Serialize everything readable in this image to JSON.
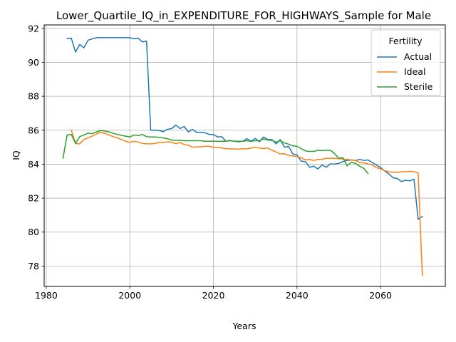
{
  "chart_data": {
    "type": "line",
    "title": "Lower_Quartile_IQ_in_EXPENDITURE_FOR_HIGHWAYS_Sample for Male",
    "xlabel": "Years",
    "ylabel": "IQ",
    "xlim": [
      1979.5,
      2075.5
    ],
    "ylim": [
      76.8,
      92.2
    ],
    "xticks": [
      1980,
      2000,
      2020,
      2040,
      2060
    ],
    "yticks": [
      78,
      80,
      82,
      84,
      86,
      88,
      90,
      92
    ],
    "grid": true,
    "legend": {
      "title": "Fertility",
      "position": "top-right"
    },
    "series": [
      {
        "name": "Actual",
        "color": "#1f77b4",
        "points": [
          [
            1985,
            91.4
          ],
          [
            1986,
            91.42
          ],
          [
            1987,
            90.6
          ],
          [
            1988,
            91.05
          ],
          [
            1989,
            90.85
          ],
          [
            1990,
            91.3
          ],
          [
            1991,
            91.38
          ],
          [
            1992,
            91.45
          ],
          [
            1993,
            91.45
          ],
          [
            1994,
            91.45
          ],
          [
            1995,
            91.45
          ],
          [
            1996,
            91.45
          ],
          [
            1997,
            91.45
          ],
          [
            1998,
            91.45
          ],
          [
            1999,
            91.45
          ],
          [
            2000,
            91.45
          ],
          [
            2001,
            91.38
          ],
          [
            2002,
            91.42
          ],
          [
            2003,
            91.2
          ],
          [
            2004,
            91.25
          ],
          [
            2005,
            86.0
          ],
          [
            2006,
            86.0
          ],
          [
            2007,
            85.98
          ],
          [
            2008,
            85.92
          ],
          [
            2009,
            86.05
          ],
          [
            2010,
            86.1
          ],
          [
            2011,
            86.3
          ],
          [
            2012,
            86.1
          ],
          [
            2013,
            86.22
          ],
          [
            2014,
            85.9
          ],
          [
            2015,
            86.05
          ],
          [
            2016,
            85.88
          ],
          [
            2017,
            85.88
          ],
          [
            2018,
            85.85
          ],
          [
            2019,
            85.75
          ],
          [
            2020,
            85.75
          ],
          [
            2021,
            85.6
          ],
          [
            2022,
            85.62
          ],
          [
            2023,
            85.35
          ],
          [
            2024,
            85.4
          ],
          [
            2025,
            85.35
          ],
          [
            2026,
            85.32
          ],
          [
            2027,
            85.35
          ],
          [
            2028,
            85.5
          ],
          [
            2029,
            85.35
          ],
          [
            2030,
            85.52
          ],
          [
            2031,
            85.32
          ],
          [
            2032,
            85.6
          ],
          [
            2033,
            85.45
          ],
          [
            2034,
            85.45
          ],
          [
            2035,
            85.2
          ],
          [
            2036,
            85.45
          ],
          [
            2037,
            85.0
          ],
          [
            2038,
            85.05
          ],
          [
            2039,
            84.6
          ],
          [
            2040,
            84.55
          ],
          [
            2041,
            84.18
          ],
          [
            2042,
            84.15
          ],
          [
            2043,
            83.82
          ],
          [
            2044,
            83.88
          ],
          [
            2045,
            83.72
          ],
          [
            2046,
            83.95
          ],
          [
            2047,
            83.82
          ],
          [
            2048,
            84.02
          ],
          [
            2049,
            84.0
          ],
          [
            2050,
            84.05
          ],
          [
            2051,
            84.15
          ],
          [
            2052,
            84.22
          ],
          [
            2053,
            84.25
          ],
          [
            2054,
            84.22
          ],
          [
            2055,
            84.28
          ],
          [
            2056,
            84.22
          ],
          [
            2057,
            84.25
          ],
          [
            2058,
            84.1
          ],
          [
            2059,
            83.95
          ],
          [
            2060,
            83.8
          ],
          [
            2061,
            83.6
          ],
          [
            2062,
            83.42
          ],
          [
            2063,
            83.2
          ],
          [
            2064,
            83.15
          ],
          [
            2065,
            82.98
          ],
          [
            2066,
            83.05
          ],
          [
            2067,
            83.02
          ],
          [
            2068,
            83.12
          ],
          [
            2069,
            80.75
          ],
          [
            2070,
            80.92
          ]
        ]
      },
      {
        "name": "Ideal",
        "color": "#ff7f0e",
        "points": [
          [
            1986,
            86.0
          ],
          [
            1987,
            85.22
          ],
          [
            1988,
            85.2
          ],
          [
            1989,
            85.45
          ],
          [
            1990,
            85.55
          ],
          [
            1991,
            85.65
          ],
          [
            1992,
            85.78
          ],
          [
            1993,
            85.88
          ],
          [
            1994,
            85.82
          ],
          [
            1995,
            85.72
          ],
          [
            1996,
            85.62
          ],
          [
            1997,
            85.55
          ],
          [
            1998,
            85.45
          ],
          [
            1999,
            85.35
          ],
          [
            2000,
            85.28
          ],
          [
            2001,
            85.35
          ],
          [
            2002,
            85.3
          ],
          [
            2003,
            85.22
          ],
          [
            2004,
            85.2
          ],
          [
            2005,
            85.2
          ],
          [
            2006,
            85.22
          ],
          [
            2007,
            85.28
          ],
          [
            2008,
            85.28
          ],
          [
            2009,
            85.32
          ],
          [
            2010,
            85.3
          ],
          [
            2011,
            85.2
          ],
          [
            2012,
            85.28
          ],
          [
            2013,
            85.15
          ],
          [
            2014,
            85.12
          ],
          [
            2015,
            85.0
          ],
          [
            2016,
            85.02
          ],
          [
            2017,
            85.02
          ],
          [
            2018,
            85.05
          ],
          [
            2019,
            85.05
          ],
          [
            2020,
            85.0
          ],
          [
            2021,
            84.98
          ],
          [
            2022,
            84.95
          ],
          [
            2023,
            84.92
          ],
          [
            2024,
            84.9
          ],
          [
            2025,
            84.9
          ],
          [
            2026,
            84.88
          ],
          [
            2027,
            84.92
          ],
          [
            2028,
            84.9
          ],
          [
            2029,
            84.95
          ],
          [
            2030,
            84.98
          ],
          [
            2031,
            84.95
          ],
          [
            2032,
            84.92
          ],
          [
            2033,
            84.95
          ],
          [
            2034,
            84.82
          ],
          [
            2035,
            84.72
          ],
          [
            2036,
            84.6
          ],
          [
            2037,
            84.62
          ],
          [
            2038,
            84.52
          ],
          [
            2039,
            84.48
          ],
          [
            2040,
            84.45
          ],
          [
            2041,
            84.38
          ],
          [
            2042,
            84.25
          ],
          [
            2043,
            84.28
          ],
          [
            2044,
            84.22
          ],
          [
            2045,
            84.28
          ],
          [
            2046,
            84.28
          ],
          [
            2047,
            84.35
          ],
          [
            2048,
            84.35
          ],
          [
            2049,
            84.35
          ],
          [
            2050,
            84.32
          ],
          [
            2051,
            84.3
          ],
          [
            2052,
            84.28
          ],
          [
            2053,
            84.25
          ],
          [
            2054,
            84.22
          ],
          [
            2055,
            84.1
          ],
          [
            2056,
            84.08
          ],
          [
            2057,
            84.02
          ],
          [
            2058,
            83.95
          ],
          [
            2059,
            83.8
          ],
          [
            2060,
            83.72
          ],
          [
            2061,
            83.62
          ],
          [
            2062,
            83.55
          ],
          [
            2063,
            83.52
          ],
          [
            2064,
            83.52
          ],
          [
            2065,
            83.55
          ],
          [
            2066,
            83.55
          ],
          [
            2067,
            83.58
          ],
          [
            2068,
            83.55
          ],
          [
            2069,
            83.48
          ],
          [
            2070,
            77.45
          ]
        ]
      },
      {
        "name": "Sterile",
        "color": "#2ca02c",
        "points": [
          [
            1984,
            84.35
          ],
          [
            1985,
            85.72
          ],
          [
            1986,
            85.75
          ],
          [
            1987,
            85.22
          ],
          [
            1988,
            85.62
          ],
          [
            1989,
            85.72
          ],
          [
            1990,
            85.82
          ],
          [
            1991,
            85.8
          ],
          [
            1992,
            85.9
          ],
          [
            1993,
            85.98
          ],
          [
            1994,
            85.95
          ],
          [
            1995,
            85.9
          ],
          [
            1996,
            85.82
          ],
          [
            1997,
            85.75
          ],
          [
            1998,
            85.7
          ],
          [
            1999,
            85.65
          ],
          [
            2000,
            85.6
          ],
          [
            2001,
            85.72
          ],
          [
            2002,
            85.68
          ],
          [
            2003,
            85.75
          ],
          [
            2004,
            85.62
          ],
          [
            2005,
            85.6
          ],
          [
            2006,
            85.6
          ],
          [
            2007,
            85.58
          ],
          [
            2008,
            85.55
          ],
          [
            2009,
            85.5
          ],
          [
            2010,
            85.42
          ],
          [
            2011,
            85.4
          ],
          [
            2012,
            85.4
          ],
          [
            2013,
            85.38
          ],
          [
            2014,
            85.38
          ],
          [
            2015,
            85.38
          ],
          [
            2016,
            85.38
          ],
          [
            2017,
            85.38
          ],
          [
            2018,
            85.35
          ],
          [
            2019,
            85.35
          ],
          [
            2020,
            85.35
          ],
          [
            2021,
            85.35
          ],
          [
            2022,
            85.35
          ],
          [
            2023,
            85.35
          ],
          [
            2024,
            85.38
          ],
          [
            2025,
            85.35
          ],
          [
            2026,
            85.35
          ],
          [
            2027,
            85.35
          ],
          [
            2028,
            85.38
          ],
          [
            2029,
            85.35
          ],
          [
            2030,
            85.38
          ],
          [
            2031,
            85.38
          ],
          [
            2032,
            85.48
          ],
          [
            2033,
            85.42
          ],
          [
            2034,
            85.4
          ],
          [
            2035,
            85.3
          ],
          [
            2036,
            85.38
          ],
          [
            2037,
            85.25
          ],
          [
            2038,
            85.18
          ],
          [
            2039,
            85.08
          ],
          [
            2040,
            85.05
          ],
          [
            2041,
            84.92
          ],
          [
            2042,
            84.78
          ],
          [
            2043,
            84.75
          ],
          [
            2044,
            84.75
          ],
          [
            2045,
            84.82
          ],
          [
            2046,
            84.8
          ],
          [
            2047,
            84.82
          ],
          [
            2048,
            84.82
          ],
          [
            2049,
            84.62
          ],
          [
            2050,
            84.35
          ],
          [
            2051,
            84.38
          ],
          [
            2052,
            83.9
          ],
          [
            2053,
            84.12
          ],
          [
            2054,
            84.05
          ],
          [
            2055,
            83.88
          ],
          [
            2056,
            83.75
          ],
          [
            2057,
            83.45
          ]
        ]
      }
    ]
  }
}
